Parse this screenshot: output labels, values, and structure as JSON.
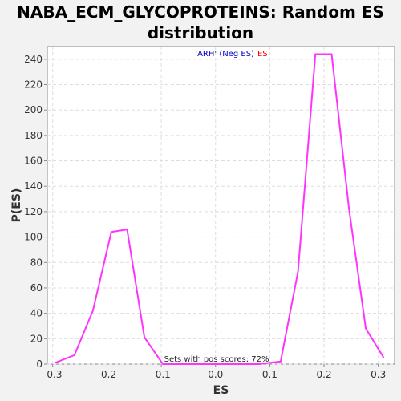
{
  "chart_data": {
    "type": "line",
    "title_line1": "NABA_ECM_GLYCOPROTEINS: Random ES",
    "title_line2": "distribution",
    "xlabel": "ES",
    "ylabel": "P(ES)",
    "xlim": [
      -0.31,
      0.33
    ],
    "ylim": [
      0,
      250
    ],
    "x_ticks": [
      -0.3,
      -0.2,
      -0.1,
      0.0,
      0.1,
      0.2,
      0.3
    ],
    "x_tick_labels": [
      "-0.3",
      "-0.2",
      "-0.1",
      "0.0",
      "0.1",
      "0.2",
      "0.3"
    ],
    "y_ticks": [
      0,
      20,
      40,
      60,
      80,
      100,
      120,
      140,
      160,
      180,
      200,
      220,
      240
    ],
    "y_tick_labels": [
      "0",
      "20",
      "40",
      "60",
      "80",
      "100",
      "120",
      "140",
      "160",
      "180",
      "200",
      "220",
      "240"
    ],
    "grid": true,
    "legend": {
      "placement": "top-center",
      "part1": "'ARH' (Neg ES)",
      "part2": "ES",
      "color1": "#0000cc",
      "color2": "#ff0000"
    },
    "annotation": "Sets with pos scores: 72%",
    "series": [
      {
        "color": "#ff33ff",
        "x": [
          -0.296,
          -0.26,
          -0.226,
          -0.192,
          -0.163,
          -0.131,
          -0.097,
          -0.065,
          0.08,
          0.12,
          0.152,
          0.184,
          0.214,
          0.246,
          0.277,
          0.31
        ],
        "y": [
          1,
          7,
          42,
          104,
          106,
          21,
          0,
          0,
          0,
          2,
          73,
          244,
          244,
          122,
          28,
          5
        ]
      }
    ]
  }
}
